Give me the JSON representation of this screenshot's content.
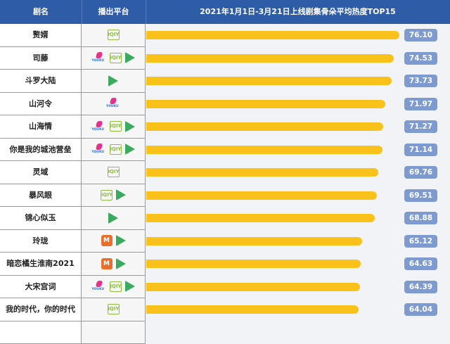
{
  "header": {
    "col_name": "剧名",
    "col_platform": "播出平台",
    "col_chart": "2021年1月1日-3月21日上线剧集骨朵平均热度TOP15"
  },
  "platform_labels": {
    "iqiyi": "iQIY",
    "youku": "YOUKU",
    "mango": "M"
  },
  "colors": {
    "header": "#2f5ca6",
    "bar": "#f9c21a",
    "badge": "#7d9bd0"
  },
  "chart_data": {
    "type": "bar",
    "orientation": "horizontal",
    "title": "2021年1月1日-3月21日上线剧集骨朵平均热度TOP15",
    "categories": [
      "赘婿",
      "司藤",
      "斗罗大陆",
      "山河令",
      "山海情",
      "你是我的城池营垒",
      "灵域",
      "暴风眼",
      "锦心似玉",
      "玲珑",
      "暗恋橘生淮南2021",
      "大宋宫词",
      "我的时代，你的时代"
    ],
    "values": [
      "76.10",
      "74.53",
      "73.73",
      "71.97",
      "71.27",
      "71.14",
      "69.76",
      "69.51",
      "68.88",
      "65.12",
      "64.63",
      "64.39",
      "64.04"
    ],
    "platforms": [
      [
        "iqiyi"
      ],
      [
        "youku",
        "iqiyi",
        "tencent"
      ],
      [
        "tencent"
      ],
      [
        "youku"
      ],
      [
        "youku",
        "iqiyi",
        "tencent"
      ],
      [
        "youku",
        "iqiyi",
        "tencent"
      ],
      [
        "iqiyi"
      ],
      [
        "iqiyi",
        "tencent"
      ],
      [
        "tencent"
      ],
      [
        "mango",
        "tencent"
      ],
      [
        "mango",
        "tencent"
      ],
      [
        "youku",
        "iqiyi",
        "tencent"
      ],
      [
        "iqiyi"
      ]
    ]
  }
}
